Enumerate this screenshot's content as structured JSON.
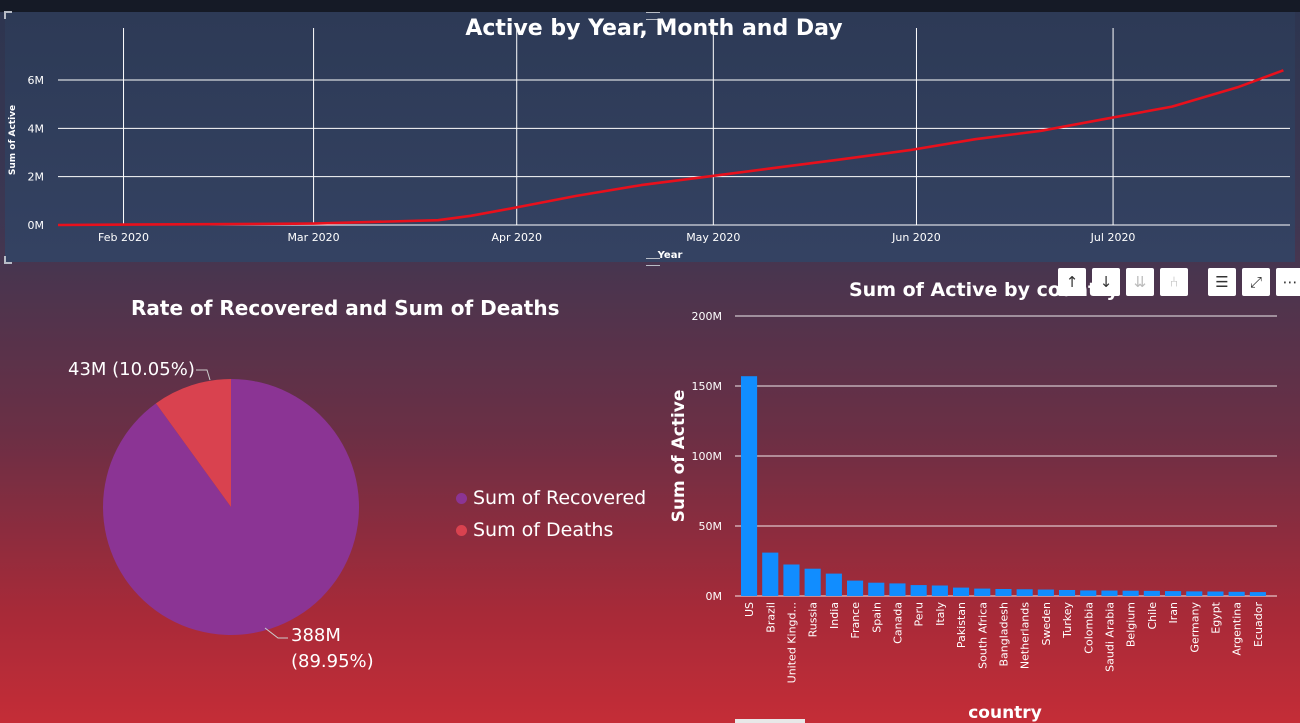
{
  "chart_data": [
    {
      "type": "line",
      "title": "Active by Year, Month and Day",
      "xlabel": "Year",
      "ylabel": "Sum of Active",
      "x_ticks": [
        "Feb 2020",
        "Mar 2020",
        "Apr 2020",
        "May 2020",
        "Jun 2020",
        "Jul 2020"
      ],
      "y_ticks": [
        "0M",
        "2M",
        "4M",
        "6M"
      ],
      "ylim": [
        0,
        7000000
      ],
      "grid": true,
      "series": [
        {
          "color": "#e8101c",
          "x": [
            "2020-01-22",
            "2020-02-10",
            "2020-03-01",
            "2020-03-20",
            "2020-03-25",
            "2020-03-31",
            "2020-04-10",
            "2020-04-20",
            "2020-04-30",
            "2020-05-10",
            "2020-05-20",
            "2020-05-31",
            "2020-06-10",
            "2020-06-20",
            "2020-06-30",
            "2020-07-10",
            "2020-07-20",
            "2020-07-27"
          ],
          "values": [
            0,
            30000,
            60000,
            200000,
            380000,
            680000,
            1200000,
            1650000,
            2000000,
            2350000,
            2700000,
            3100000,
            3550000,
            3900000,
            4400000,
            4900000,
            5700000,
            6400000
          ]
        }
      ]
    },
    {
      "type": "pie",
      "title": "Rate of Recovered and Sum of Deaths",
      "slices": [
        {
          "name": "Sum of Recovered",
          "value": 388000000,
          "label": "388M",
          "pct_label": "(89.95%)",
          "color": "#8b3494"
        },
        {
          "name": "Sum of Deaths",
          "value": 43000000,
          "label": "43M (10.05%)",
          "color": "#d9424f"
        }
      ],
      "legend_position": "right"
    },
    {
      "type": "bar",
      "title": "Sum of Active by country",
      "xlabel": "country",
      "ylabel": "Sum of Active",
      "ylim": [
        0,
        200000000
      ],
      "y_ticks": [
        "0M",
        "50M",
        "100M",
        "150M",
        "200M"
      ],
      "grid": true,
      "color": "#118dff",
      "categories": [
        "US",
        "Brazil",
        "United Kingd...",
        "Russia",
        "India",
        "France",
        "Spain",
        "Canada",
        "Peru",
        "Italy",
        "Pakistan",
        "South Africa",
        "Bangladesh",
        "Netherlands",
        "Sweden",
        "Turkey",
        "Colombia",
        "Saudi Arabia",
        "Belgium",
        "Chile",
        "Iran",
        "Germany",
        "Egypt",
        "Argentina",
        "Ecuador"
      ],
      "values": [
        157000000,
        31000000,
        22500000,
        19500000,
        16000000,
        11000000,
        9500000,
        9000000,
        7800000,
        7500000,
        6000000,
        5300000,
        5000000,
        4800000,
        4600000,
        4300000,
        4000000,
        3900000,
        3800000,
        3700000,
        3500000,
        3300000,
        3200000,
        3000000,
        2800000
      ]
    }
  ],
  "toolbar": {
    "icons": [
      "arrow-up-icon",
      "arrow-down-icon",
      "double-arrow-down-icon",
      "expand-hierarchy-icon",
      "filter-icon",
      "focus-mode-icon",
      "more-options-icon"
    ]
  }
}
